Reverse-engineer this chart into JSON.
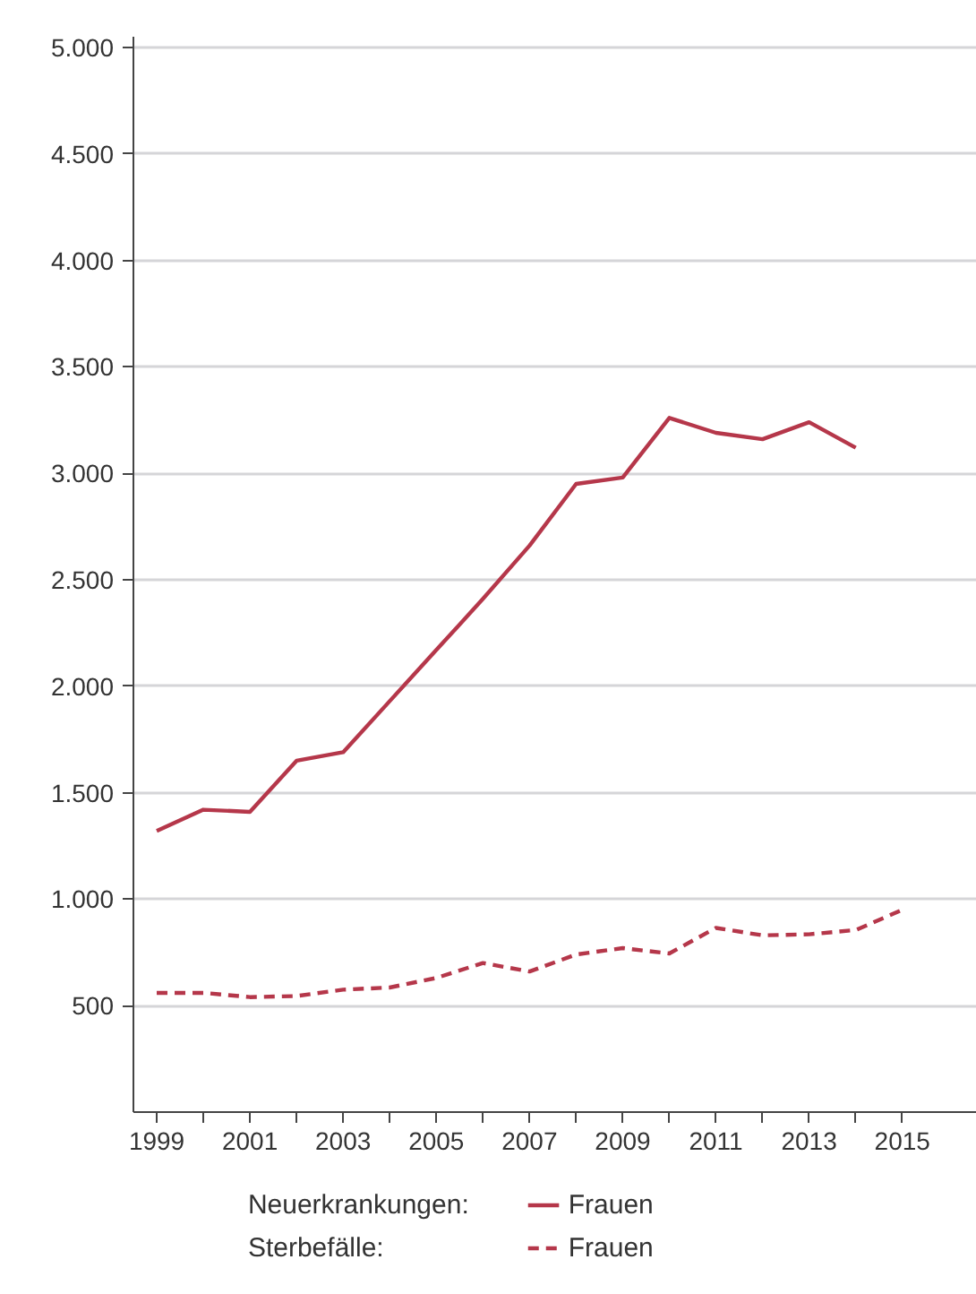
{
  "chart_data": {
    "type": "line",
    "x": [
      1999,
      2000,
      2001,
      2002,
      2003,
      2004,
      2005,
      2006,
      2007,
      2008,
      2009,
      2010,
      2011,
      2012,
      2013,
      2014,
      2015
    ],
    "series": [
      {
        "name": "Frauen",
        "color": "#b5374a",
        "line_style": "solid",
        "values": [
          1320,
          1420,
          1410,
          1650,
          1690,
          1930,
          2170,
          2410,
          2660,
          2950,
          2980,
          3260,
          3190,
          3160,
          3240,
          3120,
          null
        ]
      },
      {
        "name": "Frauen",
        "color": "#b5374a",
        "line_style": "dashed",
        "values": [
          560,
          560,
          540,
          545,
          575,
          585,
          630,
          700,
          660,
          740,
          770,
          745,
          865,
          830,
          835,
          855,
          950
        ]
      }
    ],
    "annotations": [
      "Neuerkrankungen:",
      "Sterbefälle:"
    ],
    "xlim": [
      1998.5,
      2016.6
    ],
    "xticks": [
      {
        "value": 1999,
        "label": "1999"
      },
      {
        "value": 2000,
        "label": null
      },
      {
        "value": 2001,
        "label": "2001"
      },
      {
        "value": 2002,
        "label": null
      },
      {
        "value": 2003,
        "label": "2003"
      },
      {
        "value": 2004,
        "label": null
      },
      {
        "value": 2005,
        "label": "2005"
      },
      {
        "value": 2006,
        "label": null
      },
      {
        "value": 2007,
        "label": "2007"
      },
      {
        "value": 2008,
        "label": null
      },
      {
        "value": 2009,
        "label": "2009"
      },
      {
        "value": 2010,
        "label": null
      },
      {
        "value": 2011,
        "label": "2011"
      },
      {
        "value": 2012,
        "label": null
      },
      {
        "value": 2013,
        "label": "2013"
      },
      {
        "value": 2014,
        "label": null
      },
      {
        "value": 2015,
        "label": "2015"
      }
    ],
    "ylim": [
      0,
      5050
    ],
    "yticks": [
      {
        "value": 500,
        "label": "500"
      },
      {
        "value": 1000,
        "label": "1.000"
      },
      {
        "value": 1500,
        "label": "1.500"
      },
      {
        "value": 2000,
        "label": "2.000"
      },
      {
        "value": 2500,
        "label": "2.500"
      },
      {
        "value": 3000,
        "label": "3.000"
      },
      {
        "value": 3500,
        "label": "3.500"
      },
      {
        "value": 4000,
        "label": "4.000"
      },
      {
        "value": 4500,
        "label": "4.500"
      },
      {
        "value": 5000,
        "label": "5.000"
      }
    ],
    "grid": "y",
    "legend": "bottom"
  }
}
